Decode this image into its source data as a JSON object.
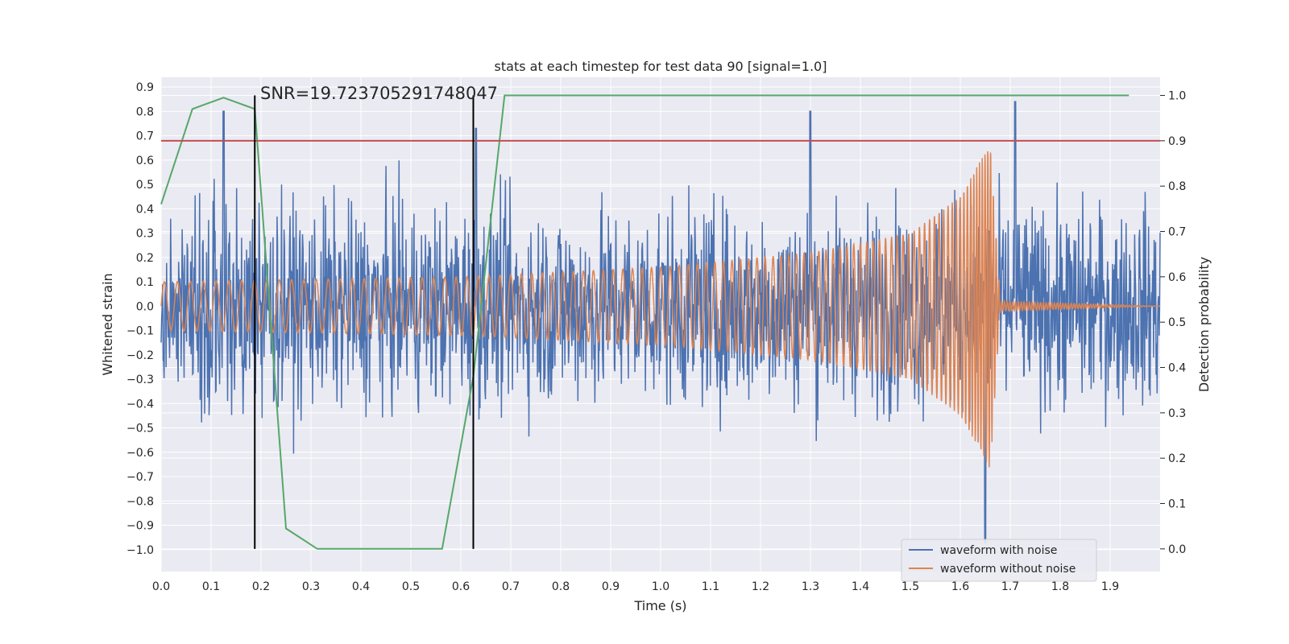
{
  "chart_data": {
    "type": "line",
    "title": "stats at each timestep for test data 90 [signal=1.0]",
    "xlabel": "Time (s)",
    "ylabel": "Whitened strain",
    "ylabel_right": "Detection probability",
    "xlim": [
      0.0,
      2.0
    ],
    "ylim": [
      -1.09,
      0.94
    ],
    "ylim_right": [
      -0.05,
      1.04
    ],
    "x_ticks": [
      "0.0",
      "0.1",
      "0.2",
      "0.3",
      "0.4",
      "0.5",
      "0.6",
      "0.7",
      "0.8",
      "0.9",
      "1.0",
      "1.1",
      "1.2",
      "1.3",
      "1.4",
      "1.5",
      "1.6",
      "1.7",
      "1.8",
      "1.9"
    ],
    "y_ticks": [
      "0.9",
      "0.8",
      "0.7",
      "0.6",
      "0.5",
      "0.4",
      "0.3",
      "0.2",
      "0.1",
      "0.0",
      "−0.1",
      "−0.2",
      "−0.3",
      "−0.4",
      "−0.5",
      "−0.6",
      "−0.7",
      "−0.8",
      "−0.9",
      "−1.0"
    ],
    "y_ticks_right": [
      "1.0",
      "0.9",
      "0.8",
      "0.7",
      "0.6",
      "0.5",
      "0.4",
      "0.3",
      "0.2",
      "0.1",
      "0.0"
    ],
    "grid": true,
    "legend_position": "lower-right",
    "annotation": "SNR=19.723705291748047",
    "series": [
      {
        "name": "waveform with noise",
        "color": "#4c72b0",
        "axis": "left",
        "description": "noisy strain, roughly -0.6..0.6 with spikes to about 0.84 and -0.97",
        "x_range": [
          0.0,
          2.0
        ],
        "peaks": [
          [
            0.125,
            0.8
          ],
          [
            0.63,
            0.73
          ],
          [
            1.3,
            0.8
          ],
          [
            1.71,
            0.84
          ],
          [
            1.65,
            -0.97
          ]
        ]
      },
      {
        "name": "waveform without noise",
        "color": "#dd8452",
        "axis": "left",
        "description": "chirp: amplitude ~0.1 growing to ~0.67 at merger t=1.66, then ringdown to 0",
        "amplitude_envelope": [
          [
            0.0,
            0.1
          ],
          [
            0.6,
            0.12
          ],
          [
            1.0,
            0.16
          ],
          [
            1.3,
            0.22
          ],
          [
            1.5,
            0.3
          ],
          [
            1.6,
            0.45
          ],
          [
            1.66,
            0.67
          ],
          [
            1.68,
            0.02
          ],
          [
            2.0,
            0.0
          ]
        ]
      },
      {
        "name": "detection probability",
        "color": "#55a868",
        "axis": "right",
        "x": [
          0.0,
          0.0625,
          0.125,
          0.1875,
          0.25,
          0.3125,
          0.5625,
          0.625,
          0.6875,
          1.9375
        ],
        "values": [
          0.76,
          0.97,
          0.995,
          0.97,
          0.045,
          0.0,
          0.0,
          0.38,
          1.0,
          1.0
        ]
      }
    ],
    "hline": {
      "axis": "right",
      "value": 0.9,
      "color": "#c44e52"
    },
    "vlines": {
      "x": [
        0.1875,
        0.625
      ],
      "color": "#000000"
    }
  }
}
